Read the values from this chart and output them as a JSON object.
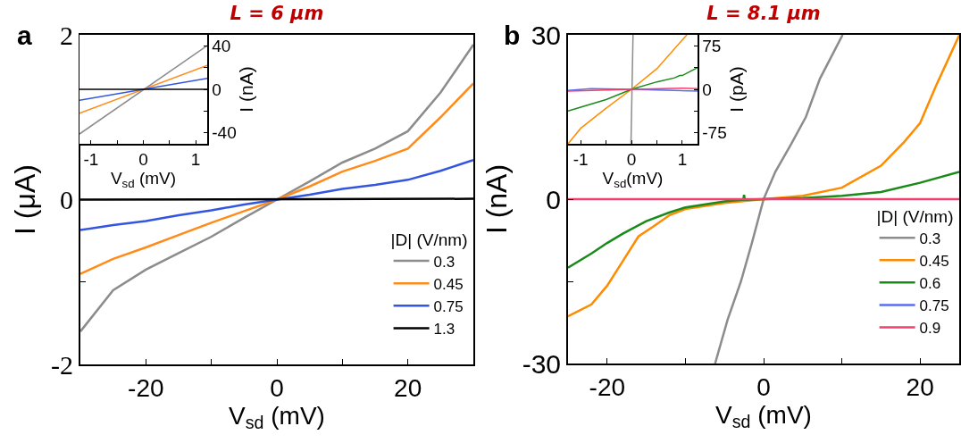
{
  "chart_data": [
    {
      "type": "line",
      "title": "L = 6 μm",
      "xlabel": "V$_{sd}$ (mV)",
      "ylabel": "I (μA)",
      "legend_title": "|D| (V/nm)",
      "annotations": [
        "a"
      ],
      "xlim": [
        -30,
        30
      ],
      "xticks": [
        -20,
        {
          "value": -10,
          "label": null
        },
        0,
        {
          "value": 10,
          "label": null
        },
        20
      ],
      "ylim": [
        -2,
        2
      ],
      "yticks": [
        -2,
        {
          "value": -1,
          "label": null
        },
        0,
        {
          "value": 1,
          "label": null
        },
        2
      ],
      "grid": false,
      "legend": "bottom right",
      "marker": "none",
      "line_style": "solid",
      "series": [
        {
          "name": "0.3",
          "color": "#8c8c8c",
          "x": [
            -30,
            -25,
            -20,
            -15,
            -10,
            -5,
            0,
            5,
            10,
            15,
            20,
            25,
            30
          ],
          "values": [
            -1.6,
            -1.1,
            -0.85,
            -0.65,
            -0.45,
            -0.22,
            0,
            0.22,
            0.45,
            0.62,
            0.83,
            1.3,
            1.88
          ]
        },
        {
          "name": "0.45",
          "color": "#ff8c1a",
          "x": [
            -30,
            -25,
            -20,
            -15,
            -10,
            -5,
            0,
            5,
            10,
            15,
            20,
            25,
            30
          ],
          "values": [
            -0.9,
            -0.72,
            -0.58,
            -0.43,
            -0.28,
            -0.14,
            0,
            0.16,
            0.34,
            0.47,
            0.62,
            1.0,
            1.41
          ]
        },
        {
          "name": "0.75",
          "color": "#3355e0",
          "x": [
            -30,
            -25,
            -20,
            -15,
            -10,
            -5,
            0,
            5,
            10,
            15,
            20,
            25,
            30
          ],
          "values": [
            -0.37,
            -0.31,
            -0.26,
            -0.19,
            -0.13,
            -0.06,
            0,
            0.06,
            0.13,
            0.18,
            0.24,
            0.35,
            0.48
          ]
        },
        {
          "name": "1.3",
          "color": "#000000",
          "x": [
            -30,
            30
          ],
          "values": [
            0,
            0.01
          ]
        }
      ]
    },
    {
      "type": "line",
      "xlabel": "V$_{sd}$ (mV)",
      "ylabel": "I (nA)",
      "xlim": [
        -1.22,
        1.22
      ],
      "xticks": [
        -1,
        {
          "value": -0.5,
          "label": null
        },
        0,
        {
          "value": 0.5,
          "label": null
        },
        1
      ],
      "ylim": [
        -50,
        50
      ],
      "yticks": [
        -40,
        {
          "value": -20,
          "label": null
        },
        0,
        {
          "value": 20,
          "label": null
        },
        40
      ],
      "grid": false,
      "legend": false,
      "marker": "none",
      "line_style": "solid",
      "series": [
        {
          "color": "#8c8c8c",
          "x": [
            -1.22,
            1.22
          ],
          "values": [
            -41,
            40
          ]
        },
        {
          "color": "#ff8c1a",
          "x": [
            -1.22,
            1.22
          ],
          "values": [
            -22,
            22
          ]
        },
        {
          "color": "#3355e0",
          "x": [
            -1.22,
            1.22
          ],
          "values": [
            -10,
            10
          ]
        },
        {
          "color": "#000000",
          "x": [
            -1.22,
            1.22
          ],
          "values": [
            0,
            0
          ]
        }
      ]
    },
    {
      "type": "line",
      "title": "L = 8.1 μm",
      "xlabel": "V$_{sd}$ (mV)",
      "ylabel": "I (nA)",
      "legend_title": "|D| (V/nm)",
      "annotations": [
        "b"
      ],
      "xlim": [
        -25,
        25
      ],
      "xticks": [
        -20,
        {
          "value": -10,
          "label": null
        },
        0,
        {
          "value": 10,
          "label": null
        },
        20
      ],
      "ylim": [
        -30,
        30
      ],
      "yticks": [
        -30,
        {
          "value": -15,
          "label": null
        },
        0,
        {
          "value": 15,
          "label": null
        },
        30
      ],
      "grid": false,
      "legend": "bottom right",
      "marker": "none",
      "line_style": "solid",
      "series": [
        {
          "name": "0.3",
          "color": "#8c8c8c",
          "x": [
            -6.2,
            -4.6,
            -2.9,
            -1.5,
            0,
            1.5,
            3.5,
            5.4,
            7.2,
            10.1
          ],
          "values": [
            -30,
            -22,
            -15,
            -8,
            0,
            5,
            10,
            15,
            22,
            30
          ]
        },
        {
          "name": "0.45",
          "color": "#ff8c00",
          "x": [
            -25,
            -22,
            -20,
            -18,
            -16,
            -14,
            -12,
            -10,
            -5,
            0,
            5,
            10,
            15,
            18,
            20,
            22,
            24,
            25
          ],
          "values": [
            -21.4,
            -19.2,
            -15.8,
            -11.3,
            -6.8,
            -4.9,
            -2.9,
            -1.8,
            -0.7,
            0,
            0.6,
            2.1,
            6.1,
            10.5,
            13.9,
            20.6,
            26.8,
            29.9
          ]
        },
        {
          "name": "0.6",
          "color": "#1a8a1a",
          "x": [
            -25,
            -22,
            -20,
            -18,
            -15,
            -12,
            -10,
            -5,
            -2.6,
            -2.5,
            -2.4,
            0,
            5,
            10,
            15,
            20,
            25
          ],
          "values": [
            -12.5,
            -9.9,
            -8,
            -6.3,
            -4,
            -2.4,
            -1.5,
            -0.4,
            -0.1,
            0.8,
            -0.1,
            0,
            0.2,
            0.6,
            1.3,
            3,
            5
          ]
        },
        {
          "name": "0.75",
          "color": "#5b6cf0"
        },
        {
          "name": "0.9",
          "color": "#f04070",
          "x": [
            -25,
            25
          ],
          "values": [
            0,
            0
          ]
        }
      ]
    },
    {
      "type": "line",
      "xlabel": "V$_{sd}$(mV)",
      "ylabel": "I (pA)",
      "xlim": [
        -1.25,
        1.3
      ],
      "xticks": [
        -1,
        {
          "value": -0.5,
          "label": null
        },
        0,
        {
          "value": 0.5,
          "label": null
        },
        1
      ],
      "ylim": [
        -95,
        95
      ],
      "yticks": [
        -75,
        {
          "value": -37.5,
          "label": null
        },
        0,
        {
          "value": 37.5,
          "label": null
        },
        75
      ],
      "grid": false,
      "legend": false,
      "marker": "none",
      "line_style": "solid",
      "series": [
        {
          "color": "#8c8c8c",
          "x": [
            -0.01,
            0.03
          ],
          "values": [
            -95,
            95
          ]
        },
        {
          "color": "#ff8c00",
          "x": [
            -1.25,
            -1,
            -0.5,
            0,
            0.5,
            1.09
          ],
          "values": [
            -95,
            -68,
            -33,
            0,
            36,
            95
          ]
        },
        {
          "color": "#1a8a1a",
          "x": [
            -1.25,
            -1,
            -0.5,
            0,
            0.5,
            0.85,
            0.95,
            1,
            1.3
          ],
          "values": [
            -38,
            -31,
            -18,
            0,
            13,
            20,
            24,
            24,
            38
          ]
        },
        {
          "color": "#5b6cf0",
          "x": [
            -1.25,
            -0.8,
            0,
            1.3
          ],
          "values": [
            -2,
            1,
            0,
            -3
          ]
        },
        {
          "color": "#f04070",
          "x": [
            -1.25,
            0,
            1,
            1.3
          ],
          "values": [
            -3,
            0,
            2,
            1
          ]
        }
      ]
    }
  ]
}
